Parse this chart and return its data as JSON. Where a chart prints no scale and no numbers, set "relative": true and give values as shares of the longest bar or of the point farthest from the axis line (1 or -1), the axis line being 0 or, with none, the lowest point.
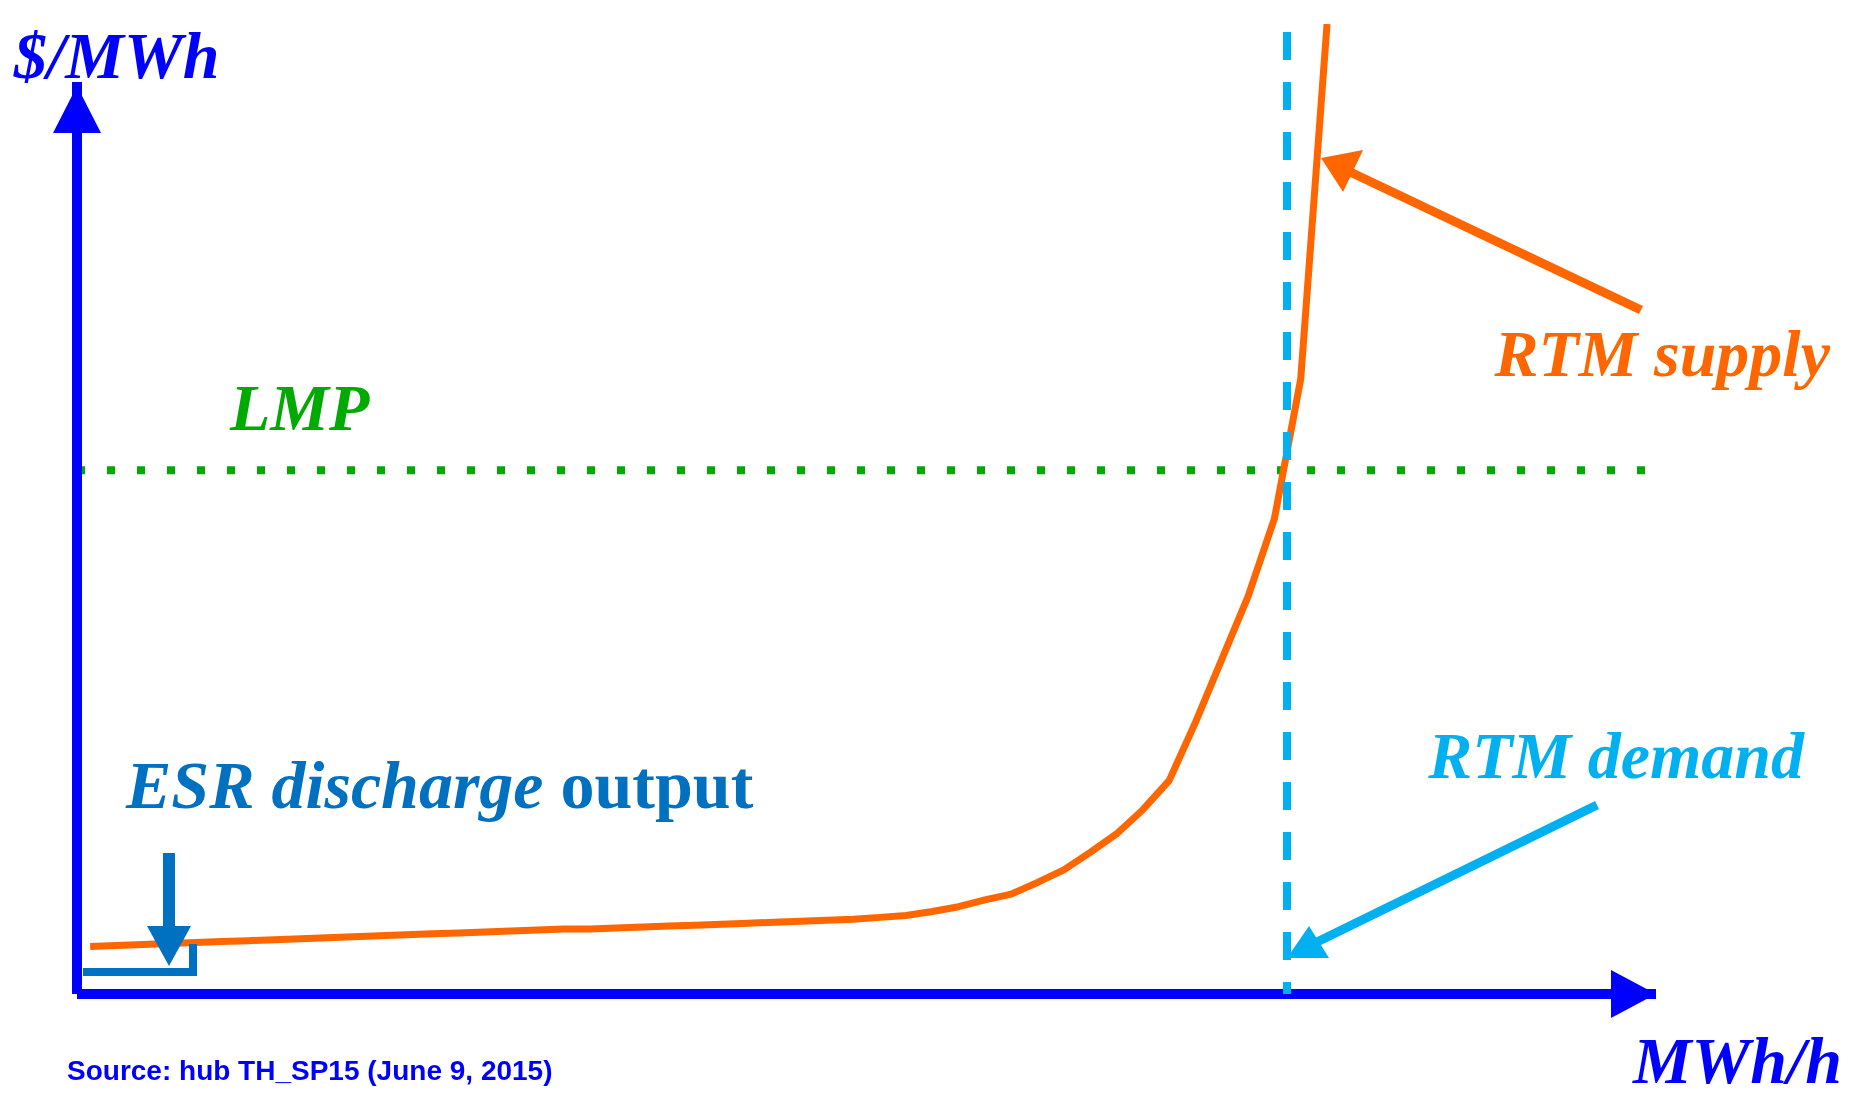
{
  "chart_data": {
    "type": "line",
    "relative": true,
    "xlabel": "MWh/h",
    "ylabel": "$/MWh",
    "marker": "none",
    "categories": [
      null,
      null,
      null,
      null,
      null,
      null,
      null,
      null,
      null,
      null,
      null,
      null,
      null,
      null,
      null,
      null,
      null,
      null,
      null,
      null,
      null,
      null,
      null,
      null,
      null,
      null,
      null,
      null,
      null,
      null,
      null,
      null,
      null,
      null,
      null,
      null,
      null,
      null,
      null,
      null,
      null,
      null,
      null,
      null,
      null,
      null,
      null,
      null,
      null,
      null,
      null,
      null,
      null,
      null,
      null,
      null,
      null,
      null,
      null,
      null
    ],
    "series": [
      {
        "name": "RTM supply",
        "color": "#ff6600",
        "line_style": "solid",
        "values": [
          0.049,
          0.05,
          0.051,
          0.052,
          0.053,
          0.054,
          0.055,
          0.056,
          0.057,
          0.058,
          0.059,
          0.06,
          0.061,
          0.062,
          0.063,
          0.064,
          0.065,
          0.066,
          0.067,
          0.067,
          0.068,
          0.069,
          0.07,
          0.071,
          0.072,
          0.073,
          0.074,
          0.075,
          0.076,
          0.077,
          0.079,
          0.081,
          0.085,
          0.09,
          0.097,
          0.103,
          0.115,
          0.128,
          0.146,
          0.165,
          0.19,
          0.22,
          0.28,
          0.345,
          0.41,
          0.49,
          0.634,
          1,
          null,
          null,
          null,
          null,
          null,
          null,
          null,
          null,
          null,
          null,
          null,
          null
        ]
      }
    ],
    "ref_lines": [
      {
        "axis": "y",
        "value": 0.54,
        "label": "LMP",
        "color": "#00aa00",
        "line_style": "dotted"
      }
    ],
    "annotations": [
      "RTM demand",
      "ESR discharge output",
      "Source: hub TH_SP15 (June 9, 2015)"
    ]
  }
}
